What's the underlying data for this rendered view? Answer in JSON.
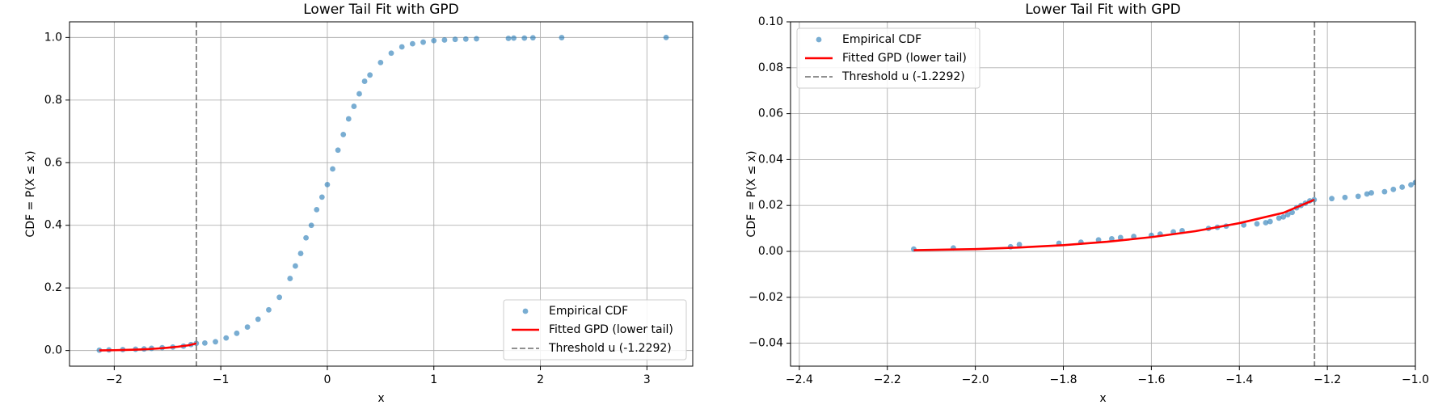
{
  "chart_data": [
    {
      "type": "combo",
      "title": "Lower Tail Fit with GPD",
      "x_label": "x",
      "y_label": "CDF = P(X ≤ x)",
      "xlim": [
        -2.42,
        3.43
      ],
      "ylim": [
        -0.05,
        1.05
      ],
      "grid": true,
      "legend": "lower right",
      "xticks": [
        {
          "value": -2,
          "label": "−2"
        },
        {
          "value": -1,
          "label": "−1"
        },
        0,
        1,
        2,
        3
      ],
      "yticks": [
        {
          "value": 0,
          "label": "0.0"
        },
        {
          "value": 0.2,
          "label": "0.2"
        },
        {
          "value": 0.4,
          "label": "0.4"
        },
        {
          "value": 0.6,
          "label": "0.6"
        },
        {
          "value": 0.8,
          "label": "0.8"
        },
        {
          "value": 1,
          "label": "1.0"
        }
      ],
      "series": [
        {
          "name": "Empirical CDF",
          "kind": "scatter",
          "color": "#1f77b4",
          "x": [
            -2.14,
            -2.05,
            -1.92,
            -1.8,
            -1.72,
            -1.65,
            -1.55,
            -1.45,
            -1.35,
            -1.28,
            -1.23,
            -1.15,
            -1.05,
            -0.95,
            -0.85,
            -0.75,
            -0.65,
            -0.55,
            -0.45,
            -0.35,
            -0.3,
            -0.25,
            -0.2,
            -0.15,
            -0.1,
            -0.05,
            0,
            0.05,
            0.1,
            0.15,
            0.2,
            0.25,
            0.3,
            0.35,
            0.4,
            0.5,
            0.6,
            0.7,
            0.8,
            0.9,
            1.0,
            1.1,
            1.2,
            1.3,
            1.4,
            1.7,
            1.75,
            1.85,
            1.93,
            2.2,
            3.18
          ],
          "values": [
            0.001,
            0.002,
            0.003,
            0.004,
            0.005,
            0.007,
            0.009,
            0.011,
            0.014,
            0.019,
            0.023,
            0.024,
            0.028,
            0.04,
            0.055,
            0.075,
            0.1,
            0.13,
            0.17,
            0.23,
            0.27,
            0.31,
            0.36,
            0.4,
            0.45,
            0.49,
            0.53,
            0.58,
            0.64,
            0.69,
            0.74,
            0.78,
            0.82,
            0.86,
            0.88,
            0.92,
            0.95,
            0.97,
            0.98,
            0.985,
            0.99,
            0.992,
            0.994,
            0.995,
            0.996,
            0.997,
            0.998,
            0.998,
            0.999,
            0.9995,
            1.0
          ]
        },
        {
          "name": "Fitted GPD (lower tail)",
          "kind": "line",
          "color": "#ff0000",
          "x": [
            -2.14,
            -2.0,
            -1.9,
            -1.8,
            -1.7,
            -1.6,
            -1.5,
            -1.4,
            -1.3,
            -1.2292
          ],
          "values": [
            0.0005,
            0.001,
            0.0017,
            0.0027,
            0.0042,
            0.0062,
            0.0088,
            0.0123,
            0.0168,
            0.0225
          ]
        },
        {
          "name": "Threshold u (-1.2292)",
          "kind": "vline",
          "color": "#808080",
          "x": [
            -1.2292
          ]
        }
      ]
    },
    {
      "type": "combo",
      "title": "Lower Tail Fit with GPD",
      "x_label": "x",
      "y_label": "CDF = P(X ≤ x)",
      "xlim": [
        -2.42,
        -1.0
      ],
      "ylim": [
        -0.05,
        0.1
      ],
      "grid": true,
      "legend": "upper left",
      "xticks": [
        {
          "value": -2.4,
          "label": "−2.4"
        },
        {
          "value": -2.2,
          "label": "−2.2"
        },
        {
          "value": -2.0,
          "label": "−2.0"
        },
        {
          "value": -1.8,
          "label": "−1.8"
        },
        {
          "value": -1.6,
          "label": "−1.6"
        },
        {
          "value": -1.4,
          "label": "−1.4"
        },
        {
          "value": -1.2,
          "label": "−1.2"
        },
        {
          "value": -1.0,
          "label": "−1.0"
        }
      ],
      "yticks": [
        {
          "value": -0.04,
          "label": "−0.04"
        },
        {
          "value": -0.02,
          "label": "−0.02"
        },
        {
          "value": 0,
          "label": "0.00"
        },
        {
          "value": 0.02,
          "label": "0.02"
        },
        {
          "value": 0.04,
          "label": "0.04"
        },
        {
          "value": 0.06,
          "label": "0.06"
        },
        {
          "value": 0.08,
          "label": "0.08"
        },
        {
          "value": 0.1,
          "label": "0.10"
        }
      ],
      "series": [
        {
          "name": "Empirical CDF",
          "kind": "scatter",
          "color": "#1f77b4",
          "x": [
            -2.14,
            -2.05,
            -1.92,
            -1.9,
            -1.81,
            -1.76,
            -1.72,
            -1.69,
            -1.67,
            -1.64,
            -1.6,
            -1.58,
            -1.55,
            -1.53,
            -1.47,
            -1.45,
            -1.43,
            -1.39,
            -1.36,
            -1.34,
            -1.33,
            -1.31,
            -1.3,
            -1.29,
            -1.28,
            -1.27,
            -1.26,
            -1.25,
            -1.24,
            -1.23,
            -1.19,
            -1.16,
            -1.13,
            -1.11,
            -1.1,
            -1.07,
            -1.05,
            -1.03,
            -1.01,
            -1.0
          ],
          "values": [
            0.001,
            0.0015,
            0.002,
            0.003,
            0.0035,
            0.004,
            0.005,
            0.0055,
            0.006,
            0.0065,
            0.007,
            0.0075,
            0.0085,
            0.009,
            0.01,
            0.0105,
            0.011,
            0.0115,
            0.012,
            0.0125,
            0.013,
            0.0145,
            0.015,
            0.016,
            0.017,
            0.019,
            0.02,
            0.021,
            0.022,
            0.0225,
            0.023,
            0.0235,
            0.024,
            0.025,
            0.0255,
            0.026,
            0.027,
            0.028,
            0.029,
            0.03
          ]
        },
        {
          "name": "Fitted GPD (lower tail)",
          "kind": "line",
          "color": "#ff0000",
          "x": [
            -2.14,
            -2.0,
            -1.9,
            -1.8,
            -1.7,
            -1.6,
            -1.5,
            -1.4,
            -1.3,
            -1.2292
          ],
          "values": [
            0.0005,
            0.001,
            0.0017,
            0.0027,
            0.0042,
            0.0062,
            0.0088,
            0.0123,
            0.0168,
            0.0225
          ]
        },
        {
          "name": "Threshold u (-1.2292)",
          "kind": "vline",
          "color": "#808080",
          "x": [
            -1.2292
          ]
        }
      ]
    }
  ]
}
